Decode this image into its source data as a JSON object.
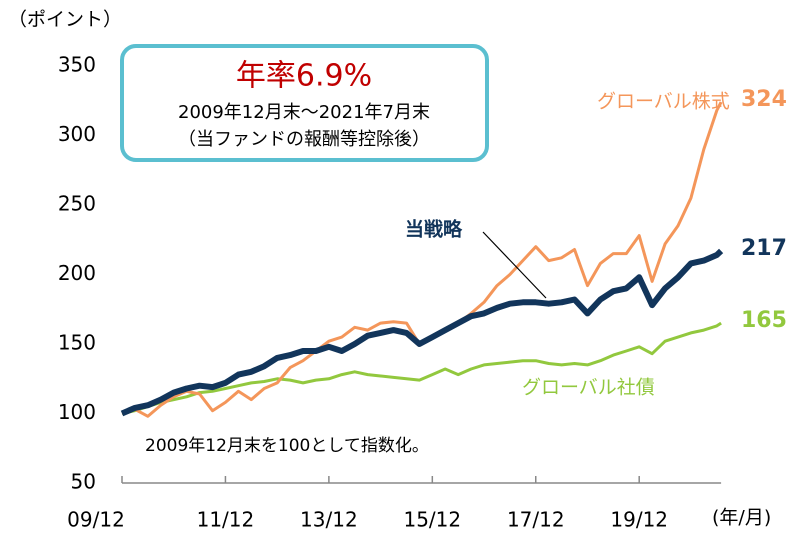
{
  "chart_data": {
    "type": "line",
    "y_axis_label": "（ポイント）",
    "x_axis_label": "(年/月)",
    "annotation_box": {
      "headline": "年率6.9%",
      "period": "2009年12月末～2021年7月末",
      "note": "（当ファンドの報酬等控除後）"
    },
    "footnote": "2009年12月末を100として指数化。",
    "x": [
      "09/12",
      "10/03",
      "10/06",
      "10/09",
      "10/12",
      "11/03",
      "11/06",
      "11/09",
      "11/12",
      "12/03",
      "12/06",
      "12/09",
      "12/12",
      "13/03",
      "13/06",
      "13/09",
      "13/12",
      "14/03",
      "14/06",
      "14/09",
      "14/12",
      "15/03",
      "15/06",
      "15/09",
      "15/12",
      "16/03",
      "16/06",
      "16/09",
      "16/12",
      "17/03",
      "17/06",
      "17/09",
      "17/12",
      "18/03",
      "18/06",
      "18/09",
      "18/12",
      "19/03",
      "19/06",
      "19/09",
      "19/12",
      "20/03",
      "20/06",
      "20/09",
      "20/12",
      "21/03",
      "21/06",
      "21/07"
    ],
    "series": [
      {
        "name": "グローバル株式",
        "color": "#f4965a",
        "width": 3,
        "values": [
          100,
          103,
          98,
          106,
          112,
          116,
          114,
          102,
          108,
          116,
          110,
          118,
          122,
          133,
          138,
          145,
          152,
          155,
          162,
          160,
          165,
          166,
          165,
          150,
          155,
          160,
          165,
          172,
          180,
          192,
          200,
          210,
          220,
          210,
          212,
          218,
          192,
          208,
          215,
          215,
          228,
          195,
          222,
          235,
          255,
          290,
          318,
          324
        ]
      },
      {
        "name": "当戦略",
        "color": "#12355b",
        "width": 6,
        "values": [
          100,
          104,
          106,
          110,
          115,
          118,
          120,
          119,
          122,
          128,
          130,
          134,
          140,
          142,
          145,
          145,
          148,
          145,
          150,
          156,
          158,
          160,
          158,
          150,
          155,
          160,
          165,
          170,
          172,
          176,
          179,
          180,
          180,
          179,
          180,
          182,
          172,
          182,
          188,
          190,
          198,
          178,
          190,
          198,
          208,
          210,
          214,
          217
        ]
      },
      {
        "name": "グローバル社債",
        "color": "#92c83e",
        "width": 3,
        "values": [
          100,
          102,
          105,
          108,
          110,
          112,
          115,
          116,
          118,
          120,
          122,
          123,
          125,
          124,
          122,
          124,
          125,
          128,
          130,
          128,
          127,
          126,
          125,
          124,
          128,
          132,
          128,
          132,
          135,
          136,
          137,
          138,
          138,
          136,
          135,
          136,
          135,
          138,
          142,
          145,
          148,
          143,
          152,
          155,
          158,
          160,
          163,
          165
        ]
      }
    ],
    "ylim": [
      50,
      350
    ],
    "yticks": [
      50,
      100,
      150,
      200,
      250,
      300,
      350
    ],
    "xticks": [
      "09/12",
      "11/12",
      "13/12",
      "15/12",
      "17/12",
      "19/12"
    ],
    "annotation_color": "#c00000",
    "box_color": "#5bbfd0"
  }
}
